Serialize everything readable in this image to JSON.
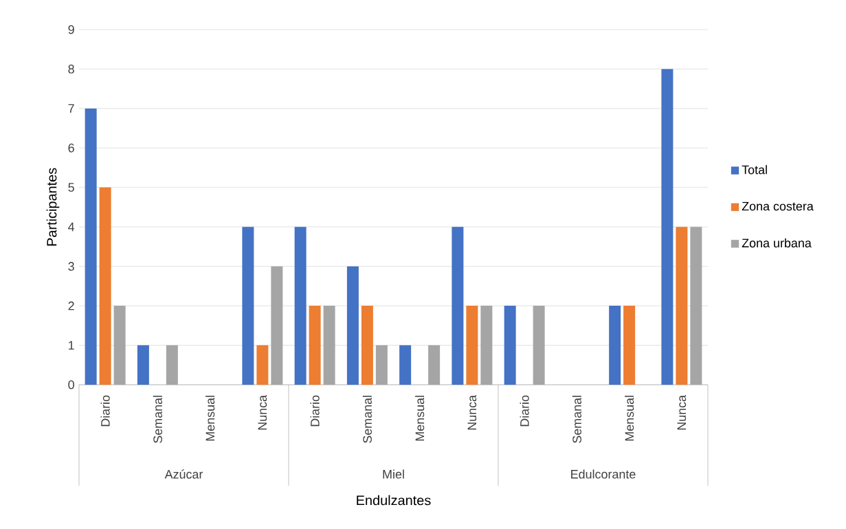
{
  "chart_data": {
    "type": "bar",
    "xlabel": "Endulzantes",
    "ylabel": "Participantes",
    "categories": [
      "Diario",
      "Semanal",
      "Mensual",
      "Nunca",
      "Diario",
      "Semanal",
      "Mensual",
      "Nunca",
      "Diario",
      "Semanal",
      "Mensual",
      "Nunca"
    ],
    "series": [
      {
        "name": "Total",
        "color": "#4472c4",
        "values": [
          7,
          1,
          0,
          4,
          4,
          3,
          1,
          4,
          2,
          0,
          2,
          8
        ]
      },
      {
        "name": "Zona costera",
        "color": "#ed7d31",
        "values": [
          5,
          0,
          0,
          1,
          2,
          2,
          0,
          2,
          0,
          0,
          2,
          4
        ]
      },
      {
        "name": "Zona urbana",
        "color": "#a5a5a5",
        "values": [
          2,
          1,
          0,
          3,
          2,
          1,
          1,
          2,
          2,
          0,
          0,
          4
        ]
      }
    ],
    "annotations": [
      "Azúcar",
      "Miel",
      "Edulcorante"
    ],
    "ylim": [
      0,
      9
    ],
    "yticks": [
      0,
      1,
      2,
      3,
      4,
      5,
      6,
      7,
      8,
      9
    ],
    "grid": "y",
    "legend": "right"
  }
}
